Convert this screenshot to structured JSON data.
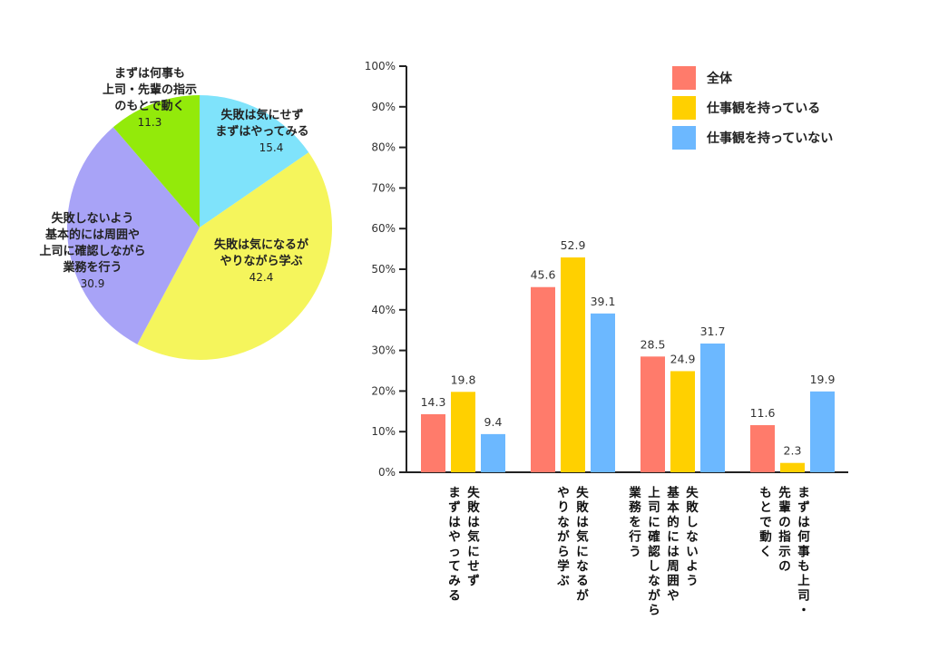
{
  "chart_data": [
    {
      "type": "pie",
      "title": "",
      "start_angle_deg": 0,
      "direction": "clockwise",
      "slices": [
        {
          "label_lines": [
            "失敗は気にせず",
            "まずはやってみる"
          ],
          "label": "失敗は気にせず まずはやってみる",
          "value": 15.4,
          "color": "#7fe3fb"
        },
        {
          "label_lines": [
            "失敗は気になるが",
            "やりながら学ぶ"
          ],
          "label": "失敗は気になるが やりながら学ぶ",
          "value": 42.4,
          "color": "#f5f55c"
        },
        {
          "label_lines": [
            "失敗しないよう",
            "基本的には周囲や",
            "上司に確認しながら",
            "業務を行う"
          ],
          "label": "失敗しないよう 基本的には周囲や 上司に確認しながら 業務を行う",
          "value": 30.9,
          "color": "#a8a3f7"
        },
        {
          "label_lines": [
            "まずは何事も",
            "上司・先輩の指示",
            "のもとで動く"
          ],
          "label": "まずは何事も 上司・先輩の指示 のもとで動く",
          "value": 11.3,
          "color": "#93ea0a"
        }
      ]
    },
    {
      "type": "bar",
      "title": "",
      "xlabel": "",
      "ylabel": "",
      "ylim": [
        0,
        100
      ],
      "yticks": [
        "0%",
        "10%",
        "20%",
        "30%",
        "40%",
        "50%",
        "60%",
        "70%",
        "80%",
        "90%",
        "100%"
      ],
      "grid": false,
      "legend_position": "top-right",
      "categories": [
        [
          "失敗は気にせず",
          "まずはやってみる"
        ],
        [
          "失敗は気になるが",
          "やりながら学ぶ"
        ],
        [
          "失敗しないよう",
          "基本的には周囲や",
          "上司に確認しながら",
          "業務を行う"
        ],
        [
          "まずは何事も上司・",
          "先輩の指示の",
          "もとで動く"
        ]
      ],
      "series": [
        {
          "name": "全体",
          "color": "#ff7b6b",
          "values": [
            14.3,
            45.6,
            28.5,
            11.6
          ]
        },
        {
          "name": "仕事観を持っている",
          "color": "#ffd000",
          "values": [
            19.8,
            52.9,
            24.9,
            2.3
          ]
        },
        {
          "name": "仕事観を持っていない",
          "color": "#6cb8ff",
          "values": [
            9.4,
            39.1,
            31.7,
            19.9
          ]
        }
      ]
    }
  ]
}
